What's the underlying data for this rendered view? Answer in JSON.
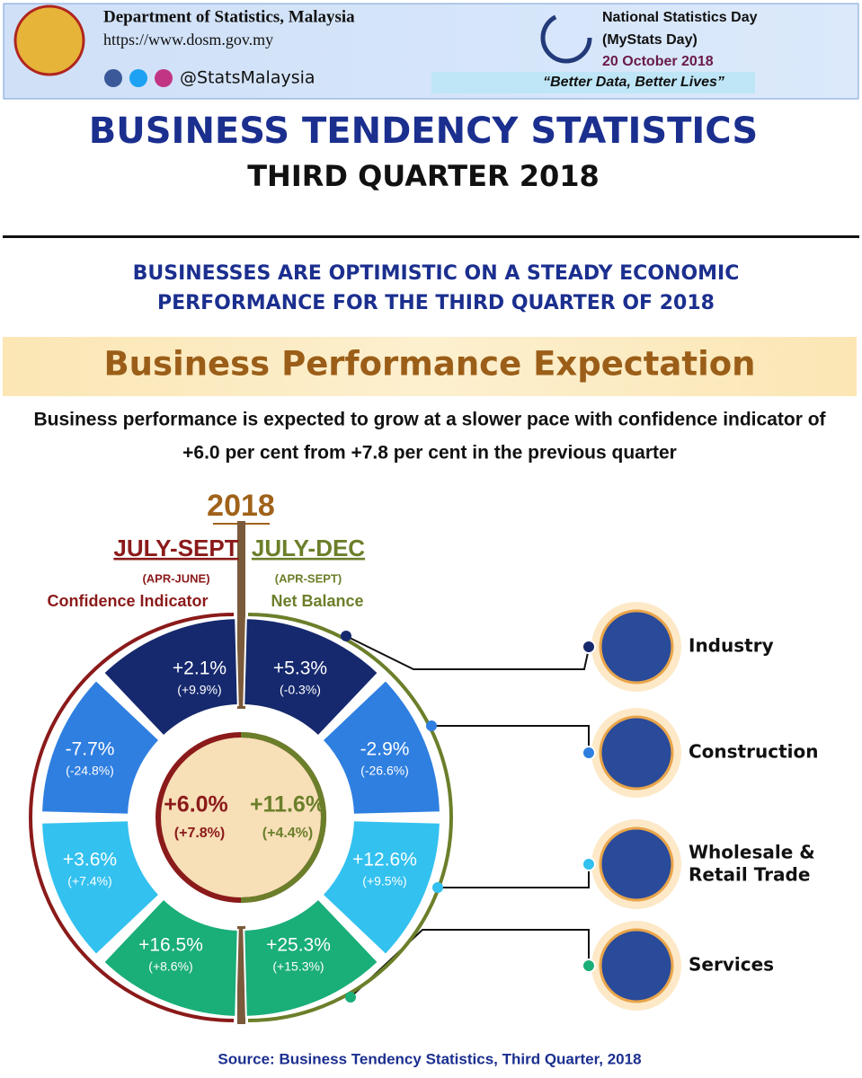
{
  "header": {
    "organization": "Department of Statistics, Malaysia",
    "url": "https://www.dosm.gov.my",
    "social": "@StatsMalaysia",
    "event": {
      "title": [
        "National Statistics Day",
        "(MyStats Day)"
      ],
      "date": "20 October 2018",
      "slogan": "“Better Data, Better Lives”"
    }
  },
  "title": "BUSINESS TENDENCY STATISTICS",
  "subtitle": "THIRD QUARTER 2018",
  "headline": [
    "BUSINESSES ARE OPTIMISTIC ON A STEADY ECONOMIC",
    "PERFORMANCE FOR THE THIRD QUARTER OF 2018"
  ],
  "section_title": "Business Performance Expectation",
  "summary": [
    "Business performance is expected to grow at a slower pace with confidence indicator of",
    "+6.0 per cent from +7.8 per cent in the previous quarter"
  ],
  "year": "2018",
  "left": {
    "period": "JULY-SEPT",
    "previous": "(APR-JUNE)",
    "label": "Confidence Indicator",
    "center": {
      "value": "+6.0%",
      "previous": "(+7.8%)"
    },
    "segments": [
      {
        "value": "+2.1%",
        "previous": "(+9.9%)"
      },
      {
        "value": "-7.7%",
        "previous": "(-24.8%)"
      },
      {
        "value": "+3.6%",
        "previous": "(+7.4%)"
      },
      {
        "value": "+16.5%",
        "previous": "(+8.6%)"
      }
    ]
  },
  "right": {
    "period": "JULY-DEC",
    "previous": "(APR-SEPT)",
    "label": "Net Balance",
    "center": {
      "value": "+11.6%",
      "previous": "(+4.4%)"
    },
    "segments": [
      {
        "value": "+5.3%",
        "previous": "(-0.3%)"
      },
      {
        "value": "-2.9%",
        "previous": "(-26.6%)"
      },
      {
        "value": "+12.6%",
        "previous": "(+9.5%)"
      },
      {
        "value": "+25.3%",
        "previous": "(+15.3%)"
      }
    ]
  },
  "sectors": [
    {
      "label": [
        "Industry"
      ]
    },
    {
      "label": [
        "Construction"
      ]
    },
    {
      "label": [
        "Wholesale &",
        "Retail Trade"
      ]
    },
    {
      "label": [
        "Services"
      ]
    }
  ],
  "source": "Source: Business Tendency Statistics, Third Quarter, 2018"
}
